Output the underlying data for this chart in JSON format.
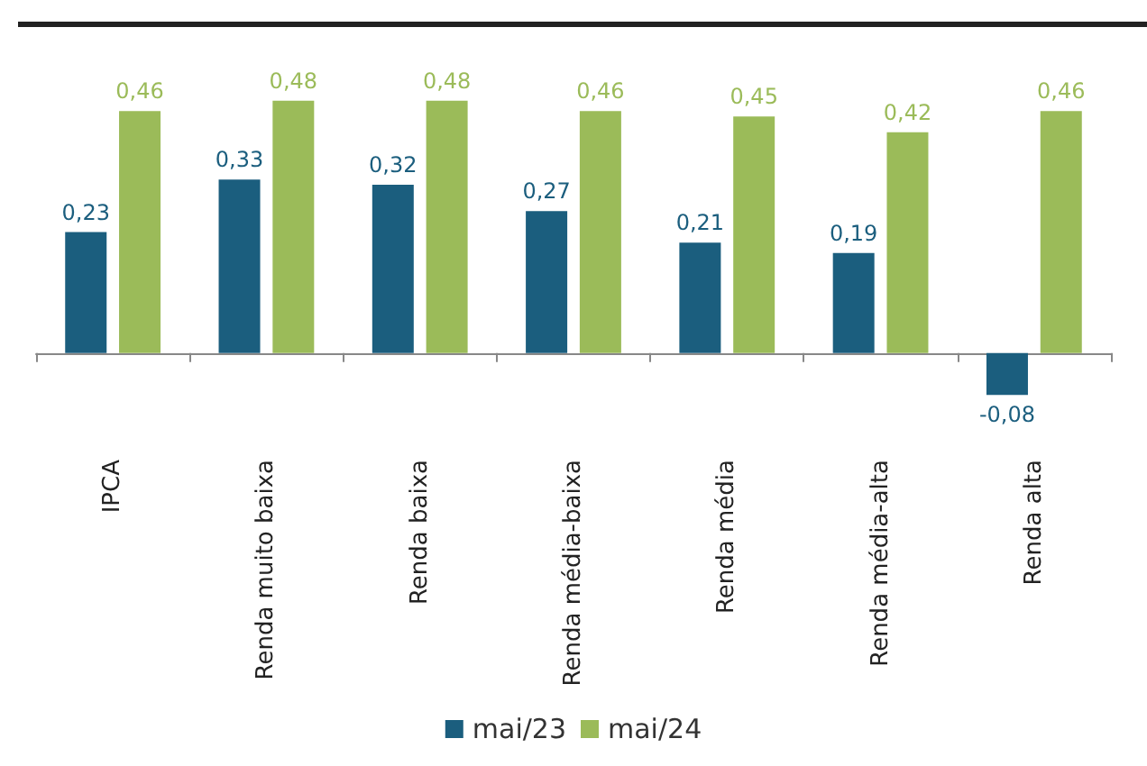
{
  "chart_data": {
    "type": "bar",
    "categories": [
      "IPCA",
      "Renda muito baixa",
      "Renda baixa",
      "Renda média-baixa",
      "Renda média",
      "Renda média-alta",
      "Renda alta"
    ],
    "series": [
      {
        "name": "mai/23",
        "color": "#1b5e7e",
        "values": [
          0.23,
          0.33,
          0.32,
          0.27,
          0.21,
          0.19,
          -0.08
        ],
        "value_labels": [
          "0,23",
          "0,33",
          "0,32",
          "0,27",
          "0,21",
          "0,19",
          "-0,08"
        ]
      },
      {
        "name": "mai/24",
        "color": "#9bbb59",
        "values": [
          0.46,
          0.48,
          0.48,
          0.46,
          0.45,
          0.42,
          0.46
        ],
        "value_labels": [
          "0,46",
          "0,48",
          "0,48",
          "0,46",
          "0,45",
          "0,42",
          "0,46"
        ]
      }
    ],
    "legend": "bottom",
    "grid": false
  }
}
